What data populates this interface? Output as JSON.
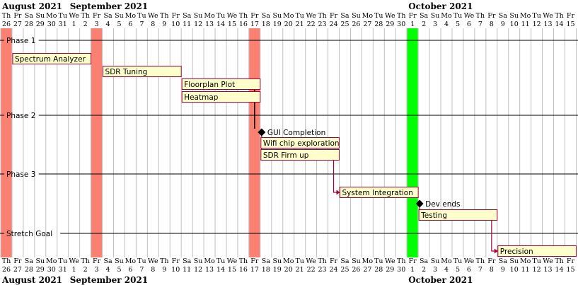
{
  "months": [
    {
      "name": "August 2021",
      "startDay": 0
    },
    {
      "name": "September 2021",
      "startDay": 6
    },
    {
      "name": "October 2021",
      "startDay": 36
    }
  ],
  "days": [
    {
      "dow": "Th",
      "num": "26"
    },
    {
      "dow": "Fr",
      "num": "27"
    },
    {
      "dow": "Sa",
      "num": "28"
    },
    {
      "dow": "Su",
      "num": "29"
    },
    {
      "dow": "Mo",
      "num": "30"
    },
    {
      "dow": "Tu",
      "num": "31"
    },
    {
      "dow": "We",
      "num": "1"
    },
    {
      "dow": "Th",
      "num": "2"
    },
    {
      "dow": "Fr",
      "num": "3"
    },
    {
      "dow": "Sa",
      "num": "4"
    },
    {
      "dow": "Su",
      "num": "5"
    },
    {
      "dow": "Mo",
      "num": "6"
    },
    {
      "dow": "Tu",
      "num": "7"
    },
    {
      "dow": "We",
      "num": "8"
    },
    {
      "dow": "Th",
      "num": "9"
    },
    {
      "dow": "Fr",
      "num": "10"
    },
    {
      "dow": "Sa",
      "num": "11"
    },
    {
      "dow": "Su",
      "num": "12"
    },
    {
      "dow": "Mo",
      "num": "13"
    },
    {
      "dow": "Tu",
      "num": "14"
    },
    {
      "dow": "We",
      "num": "15"
    },
    {
      "dow": "Th",
      "num": "16"
    },
    {
      "dow": "Fr",
      "num": "17"
    },
    {
      "dow": "Sa",
      "num": "18"
    },
    {
      "dow": "Su",
      "num": "19"
    },
    {
      "dow": "Mo",
      "num": "20"
    },
    {
      "dow": "Tu",
      "num": "21"
    },
    {
      "dow": "We",
      "num": "22"
    },
    {
      "dow": "Th",
      "num": "23"
    },
    {
      "dow": "Fr",
      "num": "24"
    },
    {
      "dow": "Sa",
      "num": "25"
    },
    {
      "dow": "Su",
      "num": "26"
    },
    {
      "dow": "Mo",
      "num": "27"
    },
    {
      "dow": "Tu",
      "num": "28"
    },
    {
      "dow": "We",
      "num": "29"
    },
    {
      "dow": "Th",
      "num": "30"
    },
    {
      "dow": "Fr",
      "num": "1"
    },
    {
      "dow": "Sa",
      "num": "2"
    },
    {
      "dow": "Su",
      "num": "3"
    },
    {
      "dow": "Mo",
      "num": "4"
    },
    {
      "dow": "Tu",
      "num": "5"
    },
    {
      "dow": "We",
      "num": "6"
    },
    {
      "dow": "Th",
      "num": "7"
    },
    {
      "dow": "Fr",
      "num": "8"
    },
    {
      "dow": "Sa",
      "num": "9"
    },
    {
      "dow": "Su",
      "num": "10"
    },
    {
      "dow": "Mo",
      "num": "11"
    },
    {
      "dow": "Tu",
      "num": "12"
    },
    {
      "dow": "We",
      "num": "13"
    },
    {
      "dow": "Th",
      "num": "14"
    },
    {
      "dow": "Fr",
      "num": "15"
    }
  ],
  "highlights": [
    {
      "day": 0,
      "color": "#fa8072"
    },
    {
      "day": 8,
      "color": "#fa8072"
    },
    {
      "day": 22,
      "color": "#fa8072"
    },
    {
      "day": 36,
      "color": "#00ff00"
    }
  ],
  "separators": [
    {
      "label": "Phase 1",
      "row": "phase1"
    },
    {
      "label": "Phase 2",
      "row": "phase2"
    },
    {
      "label": "Phase 3",
      "row": "phase3"
    },
    {
      "label": "Stretch Goal",
      "row": "stretch"
    }
  ],
  "tasks": [
    {
      "id": "spectrum",
      "label": "Spectrum Analyzer",
      "start": 1,
      "end": 8
    },
    {
      "id": "sdrtuning",
      "label": "SDR Tuning",
      "start": 9,
      "end": 16
    },
    {
      "id": "floorplan",
      "label": "Floorplan Plot",
      "start": 16,
      "end": 23
    },
    {
      "id": "heatmap",
      "label": "Heatmap",
      "start": 16,
      "end": 23
    },
    {
      "id": "wifi",
      "label": "Wifi chip exploration",
      "start": 23,
      "end": 30
    },
    {
      "id": "sdrfirm",
      "label": "SDR Firm up",
      "start": 23,
      "end": 30
    },
    {
      "id": "sysint",
      "label": "System Integration",
      "start": 30,
      "end": 37
    },
    {
      "id": "testing",
      "label": "Testing",
      "start": 37,
      "end": 44
    },
    {
      "id": "precision",
      "label": "Precision",
      "start": 44,
      "end": 51
    }
  ],
  "milestones": [
    {
      "id": "gui",
      "label": "GUI Completion",
      "day": 23
    },
    {
      "id": "devends",
      "label": "Dev ends",
      "day": 37
    }
  ],
  "colors": {
    "taskFill": "#ffffcc",
    "taskBorder": "#a80036",
    "arrow": "#a80036",
    "gridLine": "#c0c0c0",
    "milestone": "#000000"
  }
}
